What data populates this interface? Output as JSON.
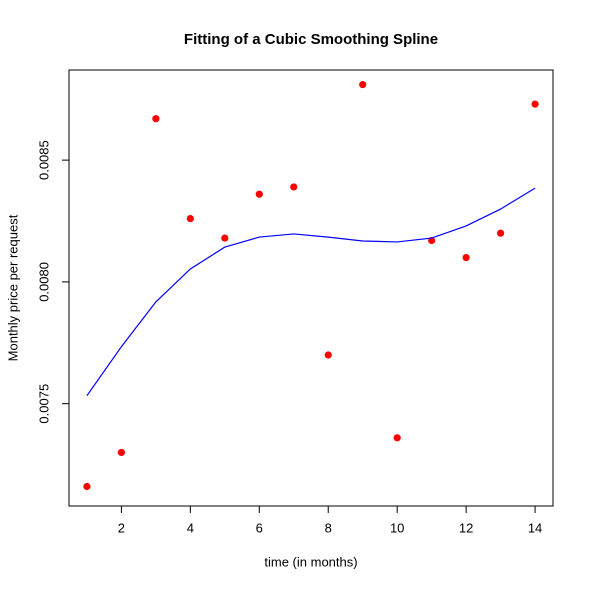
{
  "chart_data": {
    "type": "scatter",
    "title": "Fitting of a Cubic Smoothing Spline",
    "x_label": "time (in months)",
    "y_label": "Monthly price per request",
    "x": [
      1,
      2,
      3,
      4,
      5,
      6,
      7,
      8,
      9,
      10,
      11,
      12,
      13,
      14
    ],
    "series": [
      {
        "type": "scatter",
        "color": "#ff0000",
        "values": [
          0.00716,
          0.0073,
          0.00867,
          0.00826,
          0.00818,
          0.00836,
          0.00839,
          0.0077,
          0.00881,
          0.00736,
          0.00817,
          0.0081,
          0.0082,
          0.00873
        ]
      },
      {
        "type": "line",
        "color": "#0000ff",
        "values": [
          0.007533,
          0.007734,
          0.007918,
          0.008053,
          0.008143,
          0.008184,
          0.008197,
          0.008184,
          0.008168,
          0.008164,
          0.00818,
          0.00823,
          0.008299,
          0.008385
        ]
      }
    ],
    "xlim": [
      0.48,
      14.52
    ],
    "ylim": [
      0.00708,
      0.00887
    ],
    "xticks": [
      2,
      4,
      6,
      8,
      10,
      12,
      14
    ],
    "yticks": [
      0.0075,
      {
        "value": 0.008,
        "label": "0.0080"
      },
      0.0085
    ],
    "grid": false
  }
}
